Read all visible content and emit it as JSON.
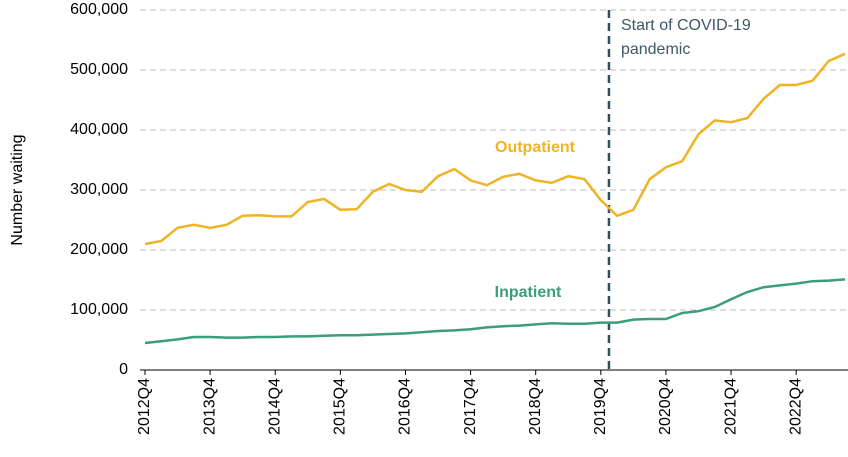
{
  "chart_data": {
    "type": "line",
    "y_label": "Number waiting",
    "categories": [
      "2012Q4",
      null,
      null,
      null,
      "2013Q4",
      null,
      null,
      null,
      "2014Q4",
      null,
      null,
      null,
      "2015Q4",
      null,
      null,
      null,
      "2016Q4",
      null,
      null,
      null,
      "2017Q4",
      null,
      null,
      null,
      "2018Q4",
      null,
      null,
      null,
      "2019Q4",
      null,
      null,
      null,
      "2020Q4",
      null,
      null,
      null,
      "2021Q4",
      null,
      null,
      null,
      "2022Q4",
      null,
      null,
      null
    ],
    "series": [
      {
        "name": "Outpatient",
        "color": "#f0b323",
        "values": [
          210000,
          215000,
          237000,
          242000,
          237000,
          242000,
          257000,
          258000,
          256000,
          256000,
          280000,
          285000,
          267000,
          268000,
          297000,
          310000,
          300000,
          297000,
          323000,
          335000,
          316000,
          308000,
          322000,
          327000,
          316000,
          312000,
          323000,
          318000,
          283000,
          257000,
          267000,
          318000,
          338000,
          348000,
          393000,
          416000,
          413000,
          420000,
          452000,
          475000,
          475000,
          482000,
          515000,
          527000
        ]
      },
      {
        "name": "Inpatient",
        "color": "#3a9e7a",
        "values": [
          45000,
          48000,
          51000,
          55000,
          55000,
          54000,
          54000,
          55000,
          55000,
          56000,
          56000,
          57000,
          58000,
          58000,
          59000,
          60000,
          61000,
          63000,
          65000,
          66000,
          68000,
          71000,
          73000,
          74000,
          76000,
          78000,
          77000,
          77000,
          79000,
          79000,
          84000,
          85000,
          85000,
          95000,
          98000,
          105000,
          118000,
          130000,
          138000,
          141000,
          144000,
          148000,
          149000,
          151000
        ]
      }
    ],
    "ylim": [
      0,
      600000
    ],
    "yticks": [
      0,
      {
        "value": 100000,
        "label": "100,000"
      },
      {
        "value": 200000,
        "label": "200,000"
      },
      {
        "value": 300000,
        "label": "300,000"
      },
      {
        "value": 400000,
        "label": "400,000"
      },
      {
        "value": 500000,
        "label": "500,000"
      },
      {
        "value": 600000,
        "label": "600,000"
      }
    ],
    "grid": true,
    "annotation": [
      "Start of COVID-19",
      "pandemic"
    ]
  }
}
